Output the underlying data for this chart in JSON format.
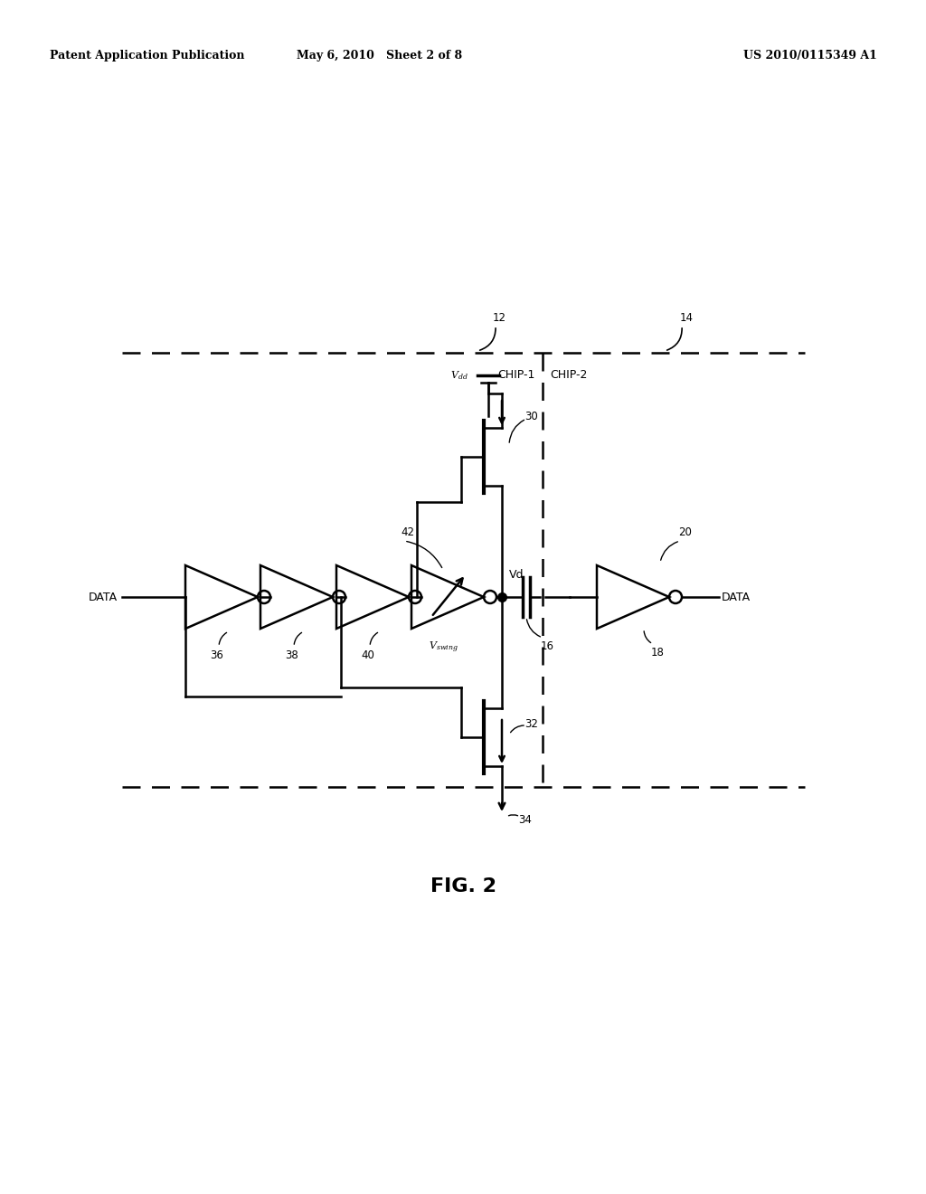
{
  "title": "FIG. 2",
  "header_left": "Patent Application Publication",
  "header_center": "May 6, 2010   Sheet 2 of 8",
  "header_right": "US 2010/0115349 A1",
  "background": "#ffffff",
  "line_color": "#000000",
  "chip1_label": "CHIP-1",
  "chip2_label": "CHIP-2",
  "label_12": "12",
  "label_14": "14",
  "label_16": "16",
  "label_18": "18",
  "label_20": "20",
  "label_30": "30",
  "label_32": "32",
  "label_34": "34",
  "label_36": "36",
  "label_38": "38",
  "label_40": "40",
  "label_42": "42",
  "label_Vdd": "V_{dd}",
  "label_Vd": "Vd",
  "label_Vswing": "V_{swing}",
  "label_DATA_left": "DATA",
  "label_DATA_right": "DATA"
}
